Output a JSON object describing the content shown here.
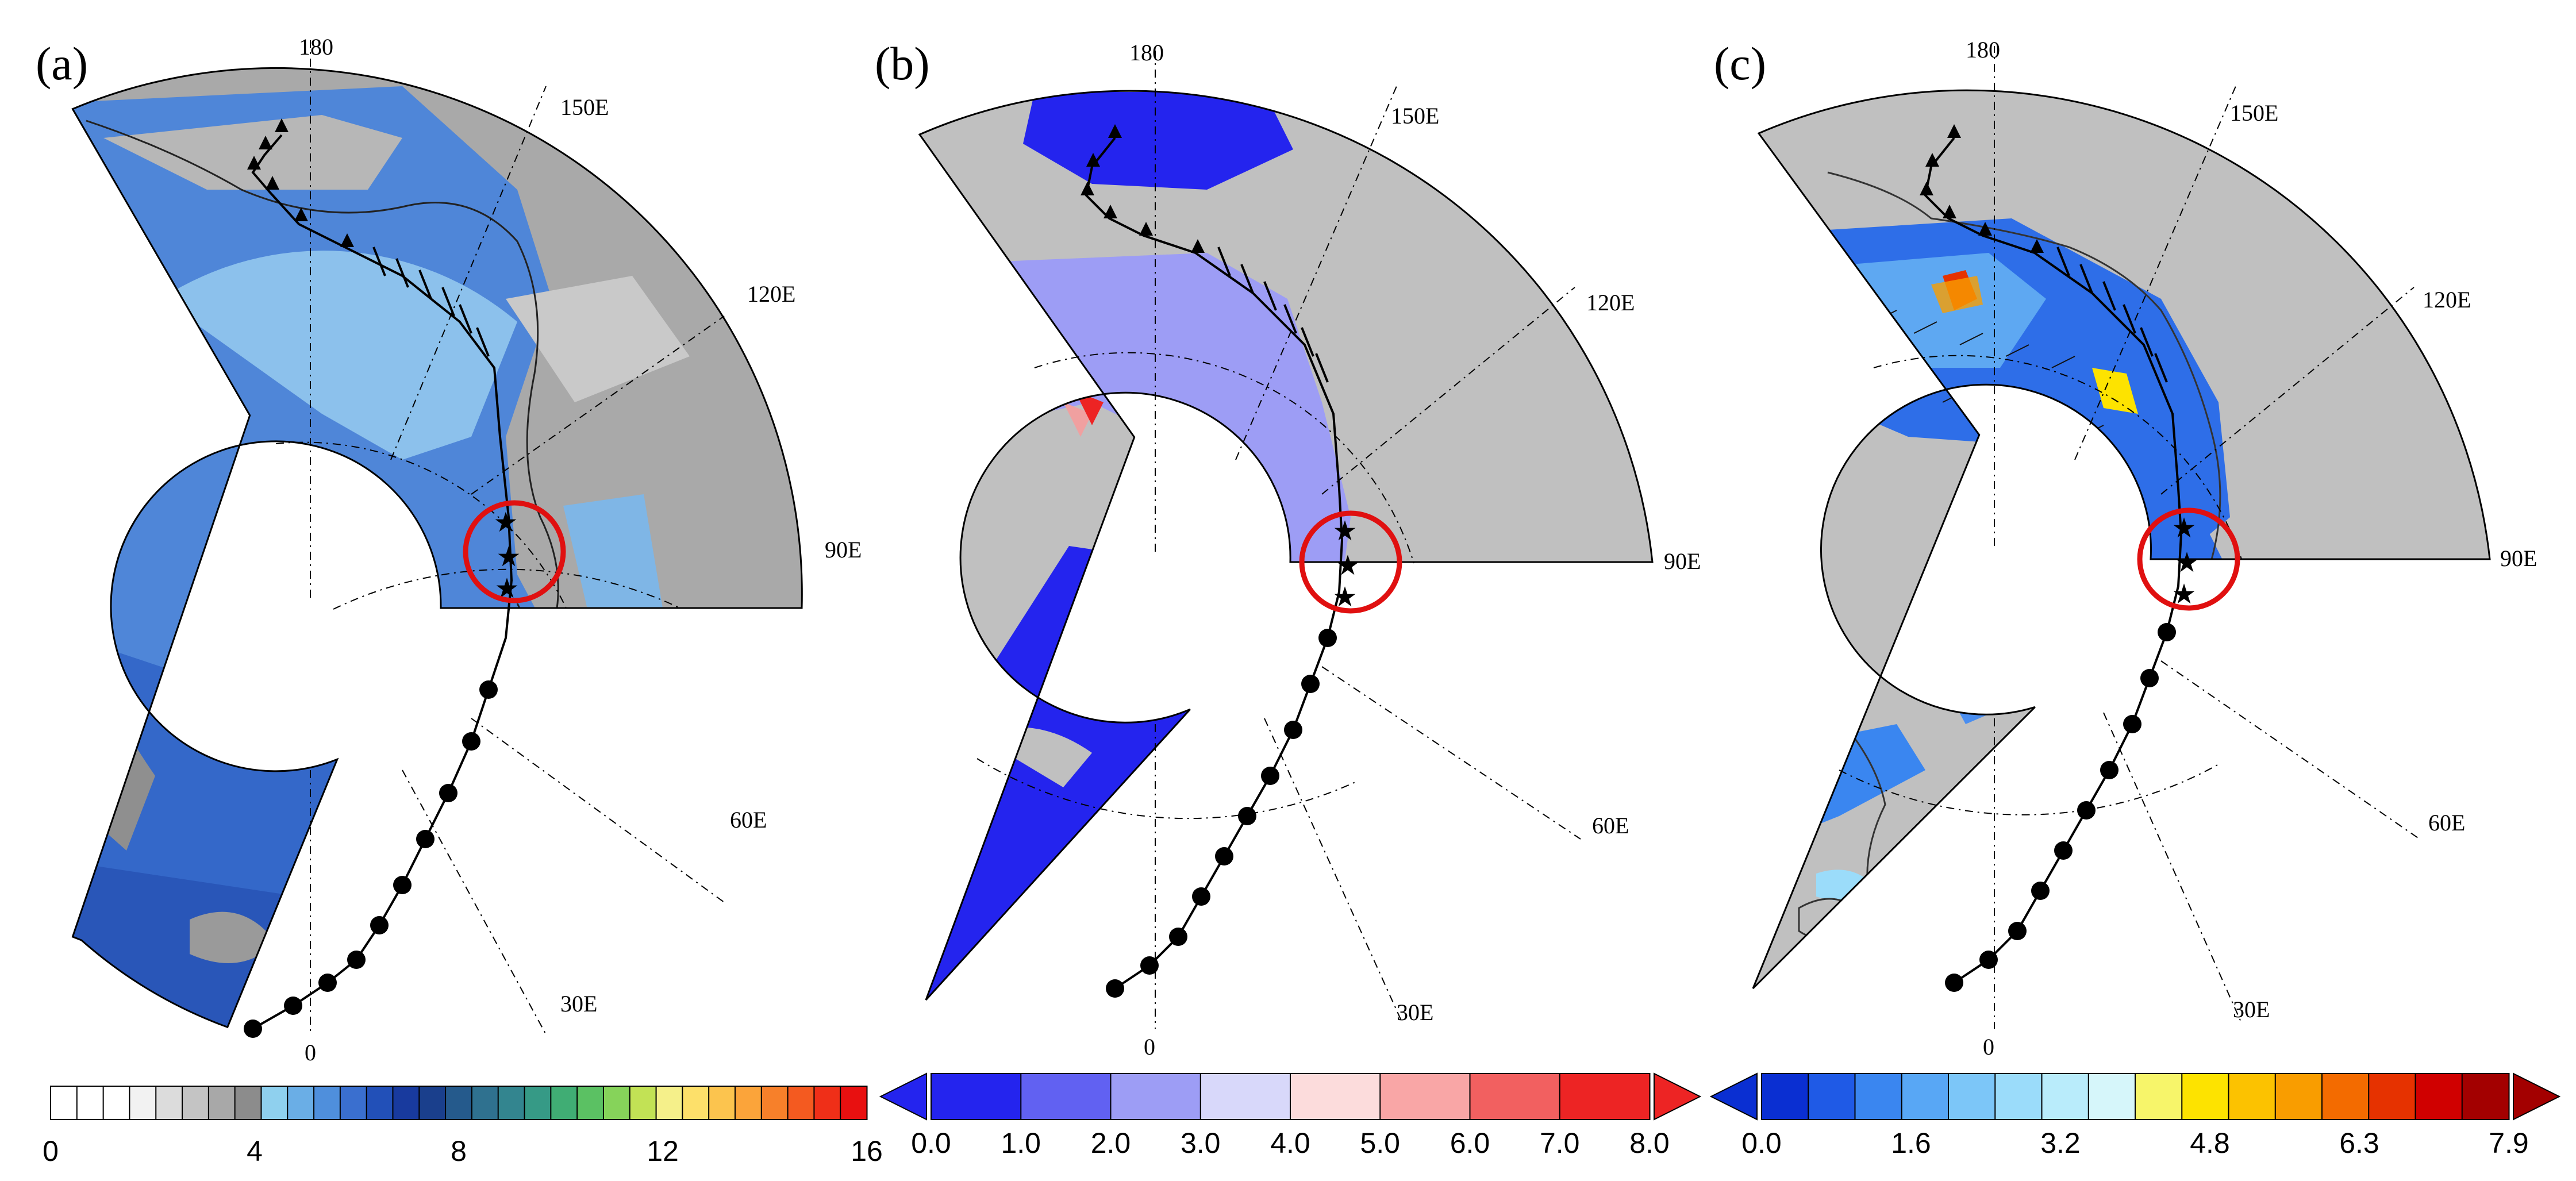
{
  "panels": [
    {
      "id": "a",
      "label": "(a)",
      "lon_labels": [
        "180",
        "150E",
        "120E",
        "90E",
        "60E",
        "30E",
        "0"
      ],
      "colorbar": {
        "ticks": [
          "0",
          "4",
          "8",
          "12",
          "16"
        ],
        "colors": [
          "#ffffff",
          "#ffffff",
          "#ffffff",
          "#f2f2f2",
          "#dcdcdc",
          "#c4c4c4",
          "#a8a8a8",
          "#8c8c8c",
          "#8fd0ee",
          "#6aaee6",
          "#4f8fdc",
          "#3a6fcf",
          "#2250b8",
          "#183a9e",
          "#1a3f8c",
          "#255a8c",
          "#2f718f",
          "#33858f",
          "#369a86",
          "#40ad74",
          "#5bc163",
          "#86d35a",
          "#c2e255",
          "#f5f08a",
          "#fde06a",
          "#fcc44e",
          "#fba43a",
          "#f7802a",
          "#f45a20",
          "#ef2f18",
          "#e81010"
        ],
        "arrows": false
      }
    },
    {
      "id": "b",
      "label": "(b)",
      "lon_labels": [
        "180",
        "150E",
        "120E",
        "90E",
        "60E",
        "30E",
        "0"
      ],
      "colorbar": {
        "ticks": [
          "0.0",
          "1.0",
          "2.0",
          "3.0",
          "4.0",
          "5.0",
          "6.0",
          "7.0",
          "8.0"
        ],
        "colors": [
          "#2424ee",
          "#6161f2",
          "#9d9df5",
          "#d8d8fa",
          "#fcdcdc",
          "#f9a6a6",
          "#f26060",
          "#ed2424"
        ],
        "arrows": true,
        "arrow_colors": [
          "#2424ee",
          "#ed2424"
        ]
      }
    },
    {
      "id": "c",
      "label": "(c)",
      "lon_labels": [
        "180",
        "150E",
        "120E",
        "90E",
        "60E",
        "30E",
        "0"
      ],
      "colorbar": {
        "ticks": [
          "0.0",
          "1.6",
          "3.2",
          "4.8",
          "6.3",
          "7.9"
        ],
        "colors": [
          "#0a2fd2",
          "#1f5ae6",
          "#3a86f0",
          "#58a7f5",
          "#7cc6f8",
          "#9bdcfa",
          "#b9ecfb",
          "#d6f6fa",
          "#f7f56a",
          "#fde300",
          "#fcc200",
          "#f99d00",
          "#f36b00",
          "#e63200",
          "#d00000",
          "#a30000"
        ],
        "arrows": true,
        "arrow_colors": [
          "#0a2fd2",
          "#a30000"
        ]
      }
    }
  ]
}
